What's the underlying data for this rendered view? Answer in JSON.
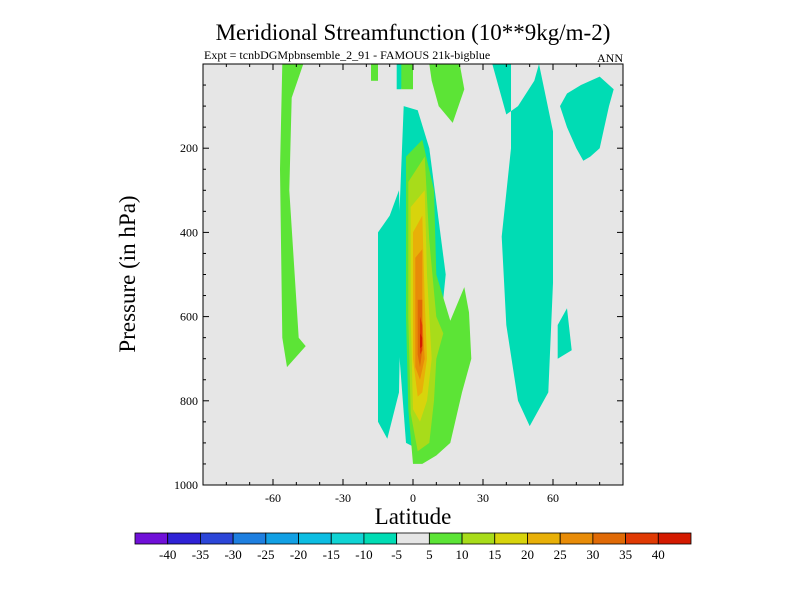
{
  "chart_data": {
    "type": "contour",
    "title": "Meridional Streamfunction (10**9kg/m-2)",
    "subtitle_left": "Expt = tcnbDGMpbnsemble_2_91 - FAMOUS 21k-bigblue",
    "subtitle_right": "ANN",
    "xlabel": "Latitude",
    "ylabel": "Pressure (in hPa)",
    "xlim": [
      -90,
      90
    ],
    "ylim": [
      0,
      1000
    ],
    "x_ticks": [
      {
        "value": -60,
        "label": "-60"
      },
      {
        "value": -30,
        "label": "-30"
      },
      {
        "value": 0,
        "label": "0"
      },
      {
        "value": 30,
        "label": "30"
      },
      {
        "value": 60,
        "label": "60"
      }
    ],
    "y_ticks": [
      {
        "value": 200,
        "label": "200"
      },
      {
        "value": 400,
        "label": "400"
      },
      {
        "value": 600,
        "label": "600"
      },
      {
        "value": 800,
        "label": "800"
      },
      {
        "value": 1000,
        "label": "1000"
      }
    ],
    "background_color": "#e6e6e6",
    "levels": [
      {
        "label": "-40",
        "color": "#7010d8"
      },
      {
        "label": "-35",
        "color": "#2f22d6"
      },
      {
        "label": "-30",
        "color": "#2c46d8"
      },
      {
        "label": "-25",
        "color": "#1e7fe0"
      },
      {
        "label": "-20",
        "color": "#12a0e4"
      },
      {
        "label": "-15",
        "color": "#0cbde2"
      },
      {
        "label": "-10",
        "color": "#10d4d4"
      },
      {
        "label": "-5",
        "color": "#00dcb4"
      },
      {
        "label": "5",
        "color": "#e6e6e6"
      },
      {
        "label": "10",
        "color": "#5ce436"
      },
      {
        "label": "15",
        "color": "#a8dc1a"
      },
      {
        "label": "20",
        "color": "#d8d40c"
      },
      {
        "label": "25",
        "color": "#e8b008"
      },
      {
        "label": "30",
        "color": "#e88c08"
      },
      {
        "label": "35",
        "color": "#e06a06"
      },
      {
        "label": "40",
        "color": "#e03a04"
      },
      {
        "color": "#d41a00"
      }
    ],
    "regions": [
      {
        "color": "#5ce436",
        "points": [
          [
            -56,
            0
          ],
          [
            -47,
            0
          ],
          [
            -52,
            80
          ],
          [
            -53,
            300
          ],
          [
            -49,
            650
          ],
          [
            -46,
            670
          ],
          [
            -54,
            720
          ],
          [
            -56,
            650
          ],
          [
            -57,
            250
          ]
        ]
      },
      {
        "color": "#5ce436",
        "points": [
          [
            -18,
            0
          ],
          [
            -15,
            0
          ],
          [
            -15,
            40
          ],
          [
            -18,
            40
          ]
        ]
      },
      {
        "color": "#00dcb4",
        "points": [
          [
            -7,
            0
          ],
          [
            -4,
            0
          ],
          [
            -5,
            60
          ],
          [
            -7,
            60
          ]
        ]
      },
      {
        "color": "#5ce436",
        "points": [
          [
            -5,
            0
          ],
          [
            0,
            0
          ],
          [
            0,
            60
          ],
          [
            -5,
            60
          ]
        ]
      },
      {
        "color": "#5ce436",
        "points": [
          [
            7,
            0
          ],
          [
            20,
            0
          ],
          [
            22,
            60
          ],
          [
            17,
            140
          ],
          [
            11,
            100
          ],
          [
            8,
            40
          ]
        ]
      },
      {
        "color": "#00dcb4",
        "points": [
          [
            -10,
            360
          ],
          [
            -6,
            300
          ],
          [
            -5,
            500
          ],
          [
            -6,
            780
          ],
          [
            -11,
            890
          ],
          [
            -15,
            850
          ],
          [
            -15,
            400
          ]
        ]
      },
      {
        "color": "#00dcb4",
        "points": [
          [
            -4,
            100
          ],
          [
            2,
            110
          ],
          [
            7,
            200
          ],
          [
            14,
            500
          ],
          [
            9,
            780
          ],
          [
            4,
            920
          ],
          [
            -3,
            900
          ],
          [
            -6,
            680
          ],
          [
            -6,
            380
          ]
        ]
      },
      {
        "color": "#00dcb4",
        "points": [
          [
            34,
            0
          ],
          [
            42,
            0
          ],
          [
            42,
            200
          ],
          [
            38,
            410
          ],
          [
            40,
            620
          ],
          [
            45,
            800
          ],
          [
            50,
            860
          ],
          [
            58,
            780
          ],
          [
            60,
            520
          ],
          [
            60,
            160
          ],
          [
            54,
            0
          ],
          [
            52,
            40
          ],
          [
            45,
            100
          ],
          [
            40,
            120
          ]
        ]
      },
      {
        "color": "#00dcb4",
        "points": [
          [
            63,
            100
          ],
          [
            66,
            150
          ],
          [
            70,
            200
          ],
          [
            73,
            230
          ],
          [
            76,
            220
          ],
          [
            80,
            200
          ],
          [
            82,
            150
          ],
          [
            84,
            100
          ],
          [
            86,
            60
          ],
          [
            80,
            30
          ],
          [
            72,
            50
          ],
          [
            66,
            70
          ]
        ]
      },
      {
        "color": "#00dcb4",
        "points": [
          [
            62,
            620
          ],
          [
            66,
            580
          ],
          [
            68,
            680
          ],
          [
            62,
            700
          ]
        ]
      },
      {
        "color": "#5ce436",
        "points": [
          [
            -3,
            220
          ],
          [
            4,
            180
          ],
          [
            9,
            300
          ],
          [
            10,
            500
          ],
          [
            16,
            610
          ],
          [
            22,
            530
          ],
          [
            24,
            590
          ],
          [
            25,
            700
          ],
          [
            21,
            780
          ],
          [
            16,
            900
          ],
          [
            10,
            930
          ],
          [
            4,
            950
          ],
          [
            0,
            950
          ],
          [
            -2,
            820
          ],
          [
            -3,
            600
          ],
          [
            -3,
            400
          ]
        ]
      },
      {
        "color": "#a8dc1a",
        "points": [
          [
            -2,
            280
          ],
          [
            5,
            220
          ],
          [
            7,
            420
          ],
          [
            10,
            600
          ],
          [
            13,
            640
          ],
          [
            10,
            700
          ],
          [
            9,
            800
          ],
          [
            7,
            900
          ],
          [
            2,
            920
          ],
          [
            -1,
            830
          ],
          [
            -2,
            600
          ]
        ]
      },
      {
        "color": "#d8d40c",
        "points": [
          [
            -1,
            340
          ],
          [
            5,
            300
          ],
          [
            6,
            500
          ],
          [
            8,
            700
          ],
          [
            6,
            800
          ],
          [
            3,
            850
          ],
          [
            0,
            820
          ],
          [
            -1,
            600
          ]
        ]
      },
      {
        "color": "#e8b008",
        "points": [
          [
            0,
            400
          ],
          [
            4,
            360
          ],
          [
            5,
            560
          ],
          [
            6,
            700
          ],
          [
            4,
            780
          ],
          [
            2,
            790
          ],
          [
            0,
            700
          ]
        ]
      },
      {
        "color": "#e88c08",
        "points": [
          [
            1,
            460
          ],
          [
            4,
            440
          ],
          [
            4,
            600
          ],
          [
            5,
            700
          ],
          [
            3,
            750
          ],
          [
            1,
            720
          ]
        ]
      },
      {
        "color": "#e06a06",
        "points": [
          [
            2,
            560
          ],
          [
            4,
            560
          ],
          [
            4,
            680
          ],
          [
            3,
            720
          ],
          [
            2,
            690
          ]
        ]
      },
      {
        "color": "#e03a04",
        "points": [
          [
            3,
            600
          ],
          [
            4,
            620
          ],
          [
            4,
            680
          ],
          [
            3,
            690
          ]
        ]
      },
      {
        "color": "#d41a00",
        "points": [
          [
            3,
            640
          ],
          [
            4,
            650
          ],
          [
            4,
            670
          ],
          [
            3,
            675
          ]
        ]
      }
    ]
  }
}
